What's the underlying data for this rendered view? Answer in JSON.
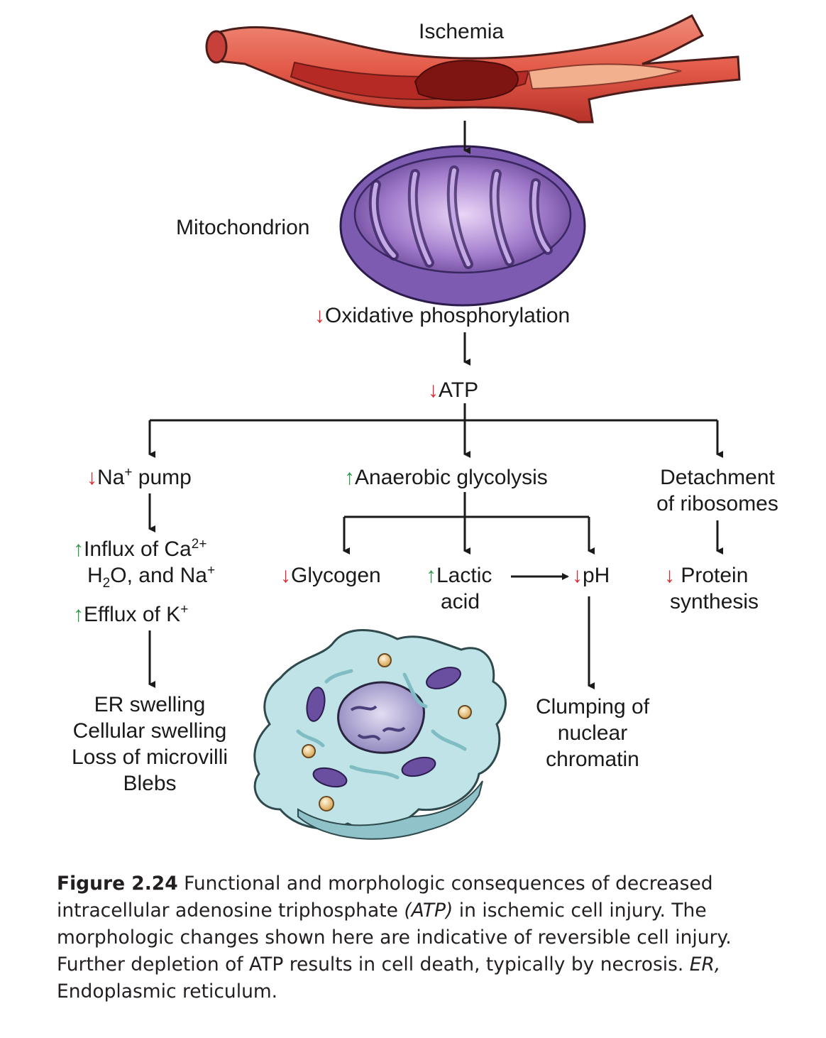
{
  "diagram": {
    "ischemia": "Ischemia",
    "mitochondrion": "Mitochondrion",
    "oxphos": "Oxidative phosphorylation",
    "atp": "ATP",
    "na_pump": {
      "pre": "Na",
      "sup": "+",
      "post": " pump"
    },
    "anaerobic": "Anaerobic glycolysis",
    "detachment": [
      "Detachment",
      "of ribosomes"
    ],
    "influx": {
      "l1_pre": "Influx of Ca",
      "l1_sup": "2+",
      "l2_a": "H",
      "l2_sub": "2",
      "l2_b": "O, and Na",
      "l2_sup": "+"
    },
    "efflux": {
      "pre": "Efflux of K",
      "sup": "+"
    },
    "glycogen": "Glycogen",
    "lactic": [
      "Lactic",
      "acid"
    ],
    "ph": "pH",
    "protein": [
      "Protein",
      "synthesis"
    ],
    "er_changes": [
      "ER swelling",
      "Cellular swelling",
      "Loss of microvilli",
      "Blebs"
    ],
    "clumping": [
      "Clumping of",
      "nuclear",
      "chromatin"
    ]
  },
  "colors": {
    "decrease": "#e0262b",
    "increase": "#2e9a4a",
    "line": "#1a1a1a"
  },
  "caption": {
    "figure": "Figure 2.24",
    "t1": " Functional and morphologic consequences of decreased intracellular adenosine triphosphate ",
    "t2": "(ATP)",
    "t3": " in ischemic cell injury. The morphologic changes shown here are indicative of reversible cell injury. Further depletion of ATP results in cell death, typically by necrosis. ",
    "t4": "ER,",
    "t5": " Endoplasmic reticulum."
  }
}
